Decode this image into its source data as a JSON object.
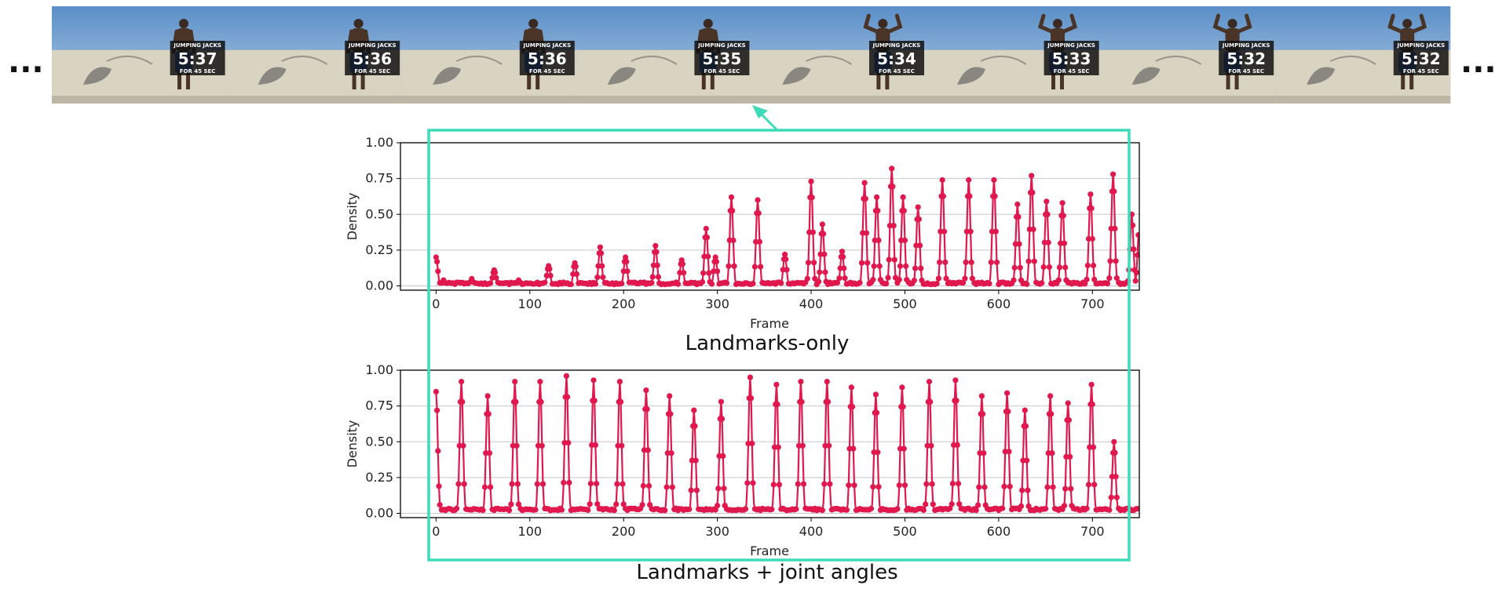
{
  "film": {
    "left_ellipsis": "...",
    "right_ellipsis": "...",
    "frames": [
      {
        "time": "5:37",
        "banner": "JUMPING JACKS",
        "sub": "FOR 45 SEC",
        "pose": "down"
      },
      {
        "time": "5:36",
        "banner": "JUMPING JACKS",
        "sub": "FOR 45 SEC",
        "pose": "down"
      },
      {
        "time": "5:36",
        "banner": "JUMPING JACKS",
        "sub": "FOR 45 SEC",
        "pose": "down"
      },
      {
        "time": "5:35",
        "banner": "JUMPING JACKS",
        "sub": "FOR 45 SEC",
        "pose": "down"
      },
      {
        "time": "5:34",
        "banner": "JUMPING JACKS",
        "sub": "FOR 45 SEC",
        "pose": "up"
      },
      {
        "time": "5:33",
        "banner": "JUMPING JACKS",
        "sub": "FOR 45 SEC",
        "pose": "up"
      },
      {
        "time": "5:32",
        "banner": "JUMPING JACKS",
        "sub": "FOR 45 SEC",
        "pose": "up"
      },
      {
        "time": "5:32",
        "banner": "JUMPING JACKS",
        "sub": "FOR 45 SEC",
        "pose": "up"
      }
    ]
  },
  "colors": {
    "series": "#e0184d",
    "highlight_box": "#3ddbb9",
    "sky": "#6f9fd0",
    "wall": "#d9d3c2"
  },
  "chart_data": [
    {
      "type": "line",
      "caption": "Landmarks-only",
      "xlabel": "Frame",
      "ylabel": "Density",
      "xlim": [
        -38,
        750
      ],
      "ylim": [
        -0.03,
        1.0
      ],
      "xticks": [
        "0",
        "100",
        "200",
        "300",
        "400",
        "500",
        "600",
        "700"
      ],
      "yticks": [
        "0.00",
        "0.25",
        "0.50",
        "0.75",
        "1.00"
      ],
      "grid": "horizontal",
      "markers": true,
      "base": 0.01,
      "peaks": [
        [
          0,
          0.2
        ],
        [
          8,
          0.04
        ],
        [
          18,
          0.02
        ],
        [
          38,
          0.05
        ],
        [
          62,
          0.11
        ],
        [
          88,
          0.04
        ],
        [
          120,
          0.14
        ],
        [
          148,
          0.16
        ],
        [
          175,
          0.27
        ],
        [
          202,
          0.2
        ],
        [
          234,
          0.28
        ],
        [
          262,
          0.18
        ],
        [
          288,
          0.4
        ],
        [
          298,
          0.2
        ],
        [
          315,
          0.62
        ],
        [
          343,
          0.6
        ],
        [
          372,
          0.22
        ],
        [
          400,
          0.73
        ],
        [
          412,
          0.43
        ],
        [
          433,
          0.24
        ],
        [
          457,
          0.72
        ],
        [
          470,
          0.62
        ],
        [
          486,
          0.82
        ],
        [
          498,
          0.62
        ],
        [
          514,
          0.55
        ],
        [
          540,
          0.74
        ],
        [
          568,
          0.74
        ],
        [
          595,
          0.74
        ],
        [
          620,
          0.57
        ],
        [
          635,
          0.77
        ],
        [
          651,
          0.59
        ],
        [
          668,
          0.58
        ],
        [
          698,
          0.64
        ],
        [
          722,
          0.78
        ],
        [
          742,
          0.5
        ],
        [
          750,
          0.42
        ]
      ]
    },
    {
      "type": "line",
      "caption": "Landmarks + joint angles",
      "xlabel": "Frame",
      "ylabel": "Density",
      "xlim": [
        -38,
        750
      ],
      "ylim": [
        -0.03,
        1.0
      ],
      "xticks": [
        "0",
        "100",
        "200",
        "300",
        "400",
        "500",
        "600",
        "700"
      ],
      "yticks": [
        "0.00",
        "0.25",
        "0.50",
        "0.75",
        "1.00"
      ],
      "grid": "horizontal",
      "markers": true,
      "base": 0.02,
      "peaks": [
        [
          0,
          0.85
        ],
        [
          27,
          0.92
        ],
        [
          55,
          0.82
        ],
        [
          84,
          0.92
        ],
        [
          111,
          0.92
        ],
        [
          139,
          0.96
        ],
        [
          168,
          0.93
        ],
        [
          196,
          0.92
        ],
        [
          224,
          0.86
        ],
        [
          249,
          0.82
        ],
        [
          275,
          0.72
        ],
        [
          304,
          0.78
        ],
        [
          335,
          0.95
        ],
        [
          363,
          0.9
        ],
        [
          389,
          0.92
        ],
        [
          417,
          0.92
        ],
        [
          443,
          0.88
        ],
        [
          469,
          0.83
        ],
        [
          497,
          0.88
        ],
        [
          526,
          0.92
        ],
        [
          554,
          0.93
        ],
        [
          582,
          0.82
        ],
        [
          609,
          0.84
        ],
        [
          628,
          0.72
        ],
        [
          655,
          0.82
        ],
        [
          674,
          0.77
        ],
        [
          699,
          0.9
        ],
        [
          723,
          0.5
        ]
      ]
    }
  ]
}
